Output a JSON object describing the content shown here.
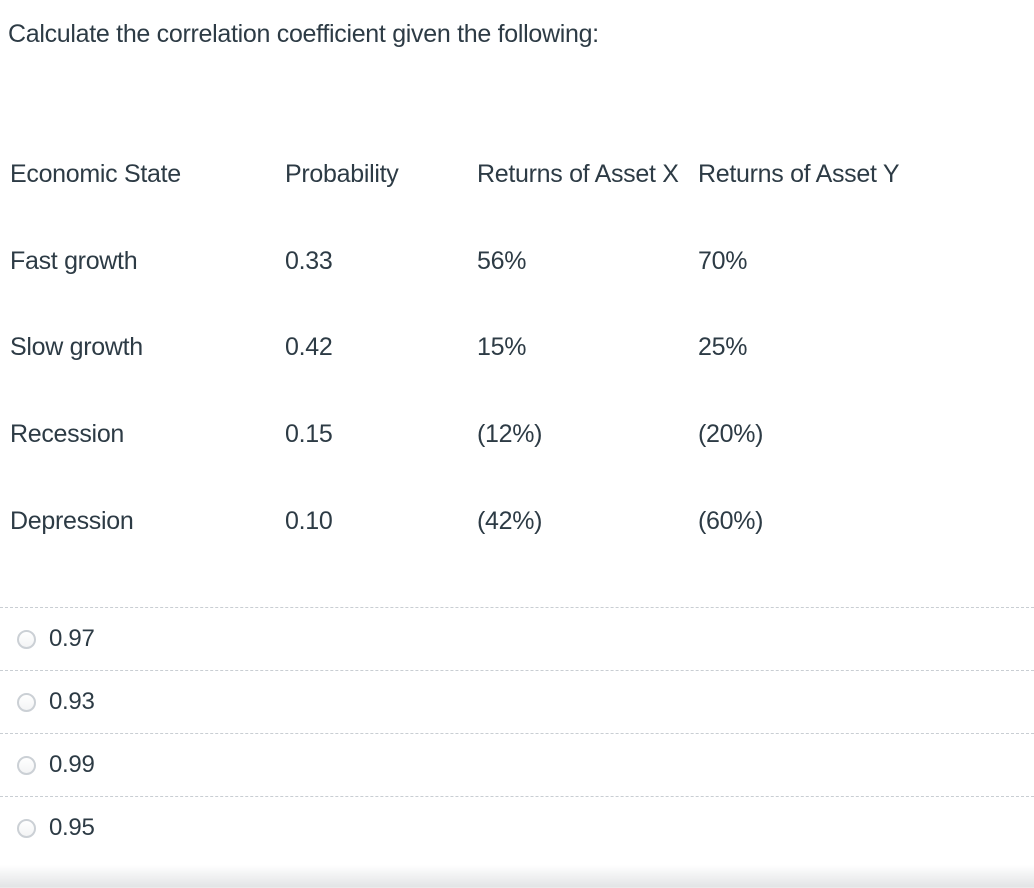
{
  "question": {
    "title": "Calculate the correlation coefficient given the following:"
  },
  "table": {
    "headers": [
      "Economic State",
      "Probability",
      "Returns of Asset X",
      "Returns of Asset Y"
    ],
    "rows": [
      {
        "cells": [
          "Fast growth",
          "0.33",
          "56%",
          "70%"
        ]
      },
      {
        "cells": [
          "Slow growth",
          "0.42",
          "15%",
          "25%"
        ]
      },
      {
        "cells": [
          "Recession",
          "0.15",
          "(12%)",
          "(20%)"
        ]
      },
      {
        "cells": [
          "Depression",
          "0.10",
          "(42%)",
          "(60%)"
        ]
      }
    ]
  },
  "options": [
    "0.97",
    "0.93",
    "0.99",
    "0.95"
  ],
  "colors": {
    "text": "#2d3b45",
    "divider": "#c9ced3",
    "radio_border": "#cbd0d5"
  }
}
